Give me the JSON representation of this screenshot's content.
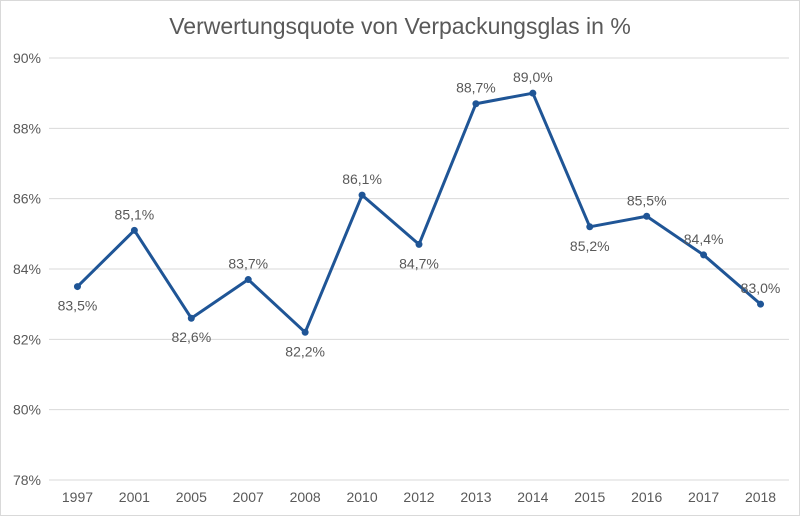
{
  "chart_data": {
    "type": "line",
    "title": "Verwertungsquote von Verpackungsglas in %",
    "categories": [
      "1997",
      "2001",
      "2005",
      "2007",
      "2008",
      "2010",
      "2012",
      "2013",
      "2014",
      "2015",
      "2016",
      "2017",
      "2018"
    ],
    "values": [
      83.5,
      85.1,
      82.6,
      83.7,
      82.2,
      86.1,
      84.7,
      88.7,
      89.0,
      85.2,
      85.5,
      84.4,
      83.0
    ],
    "data_labels": [
      "83,5%",
      "85,1%",
      "82,6%",
      "83,7%",
      "82,2%",
      "86,1%",
      "84,7%",
      "88,7%",
      "89,0%",
      "85,2%",
      "85,5%",
      "84,4%",
      "83,0%"
    ],
    "label_positions": [
      "below",
      "above",
      "below",
      "above",
      "below",
      "above",
      "below",
      "above",
      "above",
      "below",
      "above",
      "above",
      "above"
    ],
    "ylim": [
      78,
      90
    ],
    "yticks": [
      78,
      80,
      82,
      84,
      86,
      88,
      90
    ],
    "ytick_labels": [
      "78%",
      "80%",
      "82%",
      "84%",
      "86%",
      "88%",
      "90%"
    ],
    "grid": true,
    "legend": "none",
    "colors": {
      "line": "#1f5596",
      "grid": "#d9d9d9",
      "text": "#595959",
      "title": "#595959"
    }
  }
}
